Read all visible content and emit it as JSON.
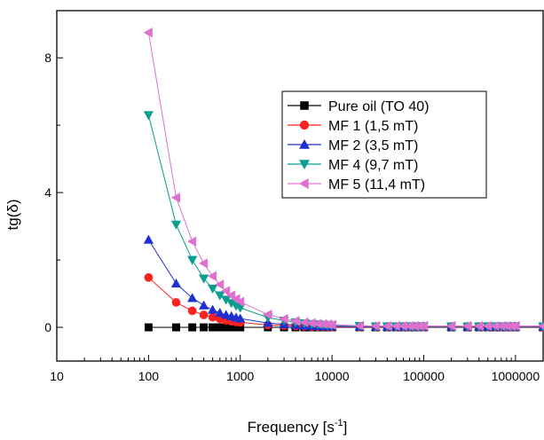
{
  "chart_data": {
    "type": "line",
    "xlabel": "Frequency [s",
    "xlabel_sup": "-1",
    "xlabel_end": "]",
    "ylabel": "tg(δ)",
    "x_scale": "log",
    "xlim": [
      10,
      2000000
    ],
    "ylim": [
      -1,
      9.4
    ],
    "x_tick_labels": [
      "10",
      "100",
      "1000",
      "10000",
      "100000",
      "1000000"
    ],
    "x_tick_values": [
      10,
      100,
      1000,
      10000,
      100000,
      1000000
    ],
    "y_tick_labels": [
      "0",
      "4",
      "8"
    ],
    "y_tick_values": [
      0,
      4,
      8
    ],
    "grid": false,
    "legend_position": "top-right",
    "x": [
      100,
      200,
      300,
      400,
      500,
      600,
      700,
      800,
      900,
      1000,
      2000,
      3000,
      4000,
      5000,
      6000,
      7000,
      8000,
      9000,
      10000,
      20000,
      30000,
      40000,
      50000,
      60000,
      70000,
      80000,
      90000,
      100000,
      200000,
      300000,
      400000,
      500000,
      600000,
      700000,
      800000,
      900000,
      1000000,
      2000000
    ],
    "series": [
      {
        "name": "Pure oil (TO 40)",
        "color": "#000000",
        "marker": "square",
        "values": [
          0,
          0,
          0,
          0,
          0,
          0,
          0,
          0,
          0,
          0,
          0,
          0,
          0,
          0,
          0,
          0,
          0,
          0,
          0,
          0,
          0,
          0,
          0,
          0,
          0,
          0,
          0,
          0,
          0,
          0,
          0,
          0,
          0,
          0,
          0,
          0,
          0,
          0
        ]
      },
      {
        "name": "MF 1 (1,5 mT)",
        "color": "#ff2020",
        "marker": "circle",
        "values": [
          1.48,
          0.74,
          0.49,
          0.37,
          0.3,
          0.25,
          0.21,
          0.18,
          0.16,
          0.15,
          0.07,
          0.05,
          0.04,
          0.03,
          0.02,
          0.02,
          0.02,
          0.02,
          0.01,
          0.01,
          0.01,
          0.01,
          0.01,
          0.01,
          0.01,
          0.01,
          0.01,
          0.01,
          0.01,
          0.01,
          0.01,
          0.01,
          0.01,
          0.01,
          0.01,
          0.01,
          0.01,
          0.01
        ]
      },
      {
        "name": "MF 2 (3,5 mT)",
        "color": "#2030d0",
        "marker": "triangle-up",
        "values": [
          2.6,
          1.3,
          0.87,
          0.65,
          0.52,
          0.43,
          0.37,
          0.33,
          0.29,
          0.26,
          0.13,
          0.09,
          0.07,
          0.05,
          0.04,
          0.04,
          0.03,
          0.03,
          0.03,
          0.02,
          0.02,
          0.02,
          0.02,
          0.02,
          0.02,
          0.02,
          0.02,
          0.02,
          0.02,
          0.02,
          0.02,
          0.02,
          0.02,
          0.02,
          0.02,
          0.02,
          0.02,
          0.02
        ]
      },
      {
        "name": "MF 4 (9,7 mT)",
        "color": "#0b9e8e",
        "marker": "triangle-down",
        "values": [
          6.3,
          3.05,
          2.0,
          1.45,
          1.15,
          0.95,
          0.82,
          0.72,
          0.64,
          0.58,
          0.29,
          0.2,
          0.15,
          0.12,
          0.1,
          0.09,
          0.08,
          0.07,
          0.06,
          0.04,
          0.03,
          0.03,
          0.03,
          0.03,
          0.03,
          0.03,
          0.03,
          0.03,
          0.03,
          0.03,
          0.03,
          0.03,
          0.03,
          0.03,
          0.03,
          0.03,
          0.03,
          0.03
        ]
      },
      {
        "name": "MF 5 (11,4 mT)",
        "color": "#e070d0",
        "marker": "triangle-left",
        "values": [
          8.75,
          3.85,
          2.55,
          1.9,
          1.52,
          1.27,
          1.08,
          0.95,
          0.84,
          0.76,
          0.38,
          0.25,
          0.19,
          0.15,
          0.13,
          0.11,
          0.1,
          0.09,
          0.08,
          0.05,
          0.04,
          0.04,
          0.04,
          0.04,
          0.04,
          0.04,
          0.04,
          0.04,
          0.04,
          0.04,
          0.04,
          0.04,
          0.04,
          0.04,
          0.04,
          0.04,
          0.04,
          0.04
        ]
      }
    ]
  }
}
